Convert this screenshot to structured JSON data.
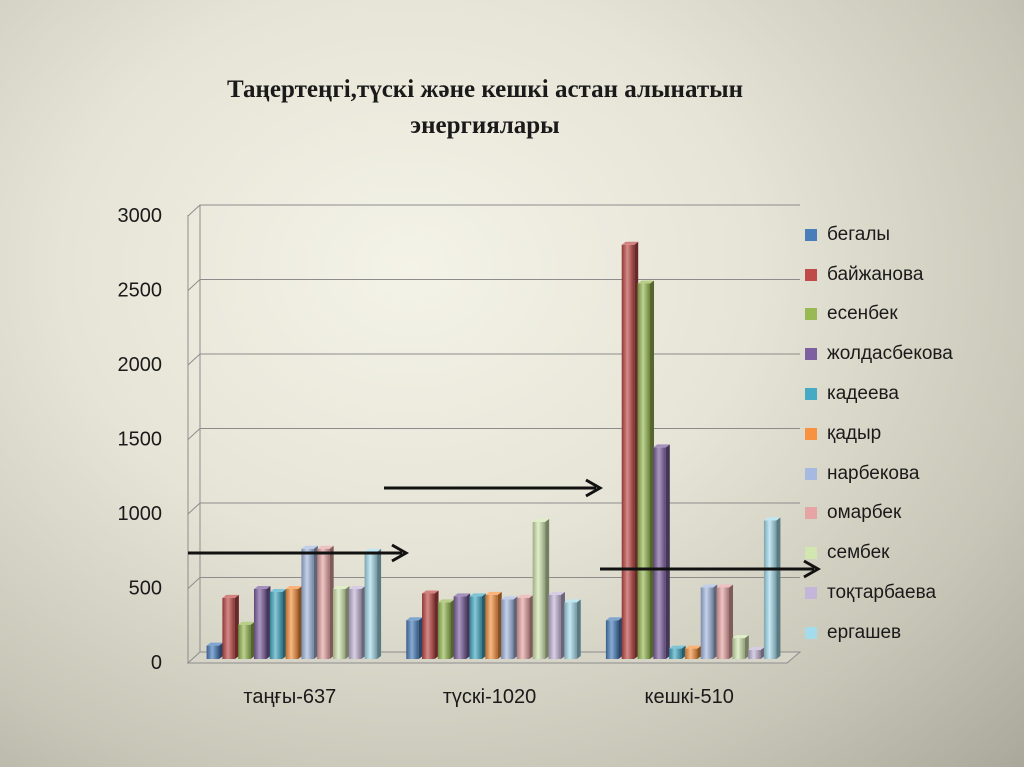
{
  "chart_data": {
    "type": "bar",
    "title_lines": [
      "Таңертеңгі,түскі және кешкі астан алынатын",
      "энергиялары"
    ],
    "categories": [
      "таңғы-637",
      "түскі-1020",
      "кешкі-510"
    ],
    "ylim": [
      0,
      3000
    ],
    "yticks": [
      0,
      500,
      1000,
      1500,
      2000,
      2500,
      3000
    ],
    "grid": true,
    "legend_position": "right",
    "series": [
      {
        "name": "бегалы",
        "color": "#4a7ebb",
        "values": [
          90,
          260,
          260
        ]
      },
      {
        "name": "байжанова",
        "color": "#be4b48",
        "values": [
          410,
          440,
          2780
        ]
      },
      {
        "name": "есенбек",
        "color": "#98b954",
        "values": [
          230,
          380,
          2520
        ]
      },
      {
        "name": "жолдасбекова",
        "color": "#7d60a0",
        "values": [
          470,
          420,
          1420
        ]
      },
      {
        "name": "кадеева",
        "color": "#46aac5",
        "values": [
          450,
          420,
          70
        ]
      },
      {
        "name": "қадыр",
        "color": "#f69240",
        "values": [
          470,
          430,
          70
        ]
      },
      {
        "name": "нарбекова",
        "color": "#a5b9e1",
        "values": [
          740,
          400,
          480
        ]
      },
      {
        "name": "омарбек",
        "color": "#e6a5a4",
        "values": [
          740,
          410,
          480
        ]
      },
      {
        "name": "сембек",
        "color": "#d2e7b0",
        "values": [
          470,
          920,
          140
        ]
      },
      {
        "name": "тоқтарбаева",
        "color": "#c4b6d9",
        "values": [
          470,
          430,
          60
        ]
      },
      {
        "name": "ергашев",
        "color": "#a5dcec",
        "values": [
          720,
          380,
          930
        ]
      }
    ]
  }
}
